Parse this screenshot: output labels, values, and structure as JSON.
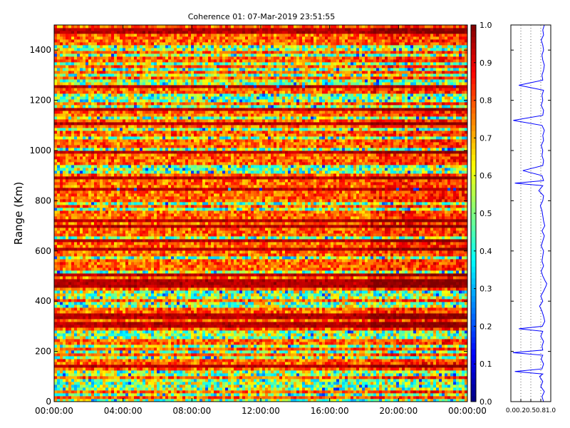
{
  "chart_data": [
    {
      "type": "heatmap",
      "title": "Coherence 01: 07-Mar-2019 23:51:55",
      "xlabel": "",
      "ylabel": "Range (Km)",
      "x_tick_labels": [
        "00:00:00",
        "04:00:00",
        "08:00:00",
        "12:00:00",
        "16:00:00",
        "20:00:00",
        "00:00:00"
      ],
      "x_range_hours": [
        0,
        24
      ],
      "y_ticks": [
        0,
        200,
        400,
        600,
        800,
        1000,
        1200,
        1400
      ],
      "ylim": [
        0,
        1500
      ],
      "colormap": "jet",
      "clim": [
        0,
        1
      ],
      "grid": false,
      "low_rows_km": [
        8,
        24,
        48,
        60,
        72,
        90,
        108,
        120,
        178,
        194,
        225,
        250,
        265,
        278,
        380,
        392,
        410,
        428,
        440,
        520,
        570,
        650,
        770,
        790,
        850,
        912,
        926,
        942,
        1010,
        1048,
        1080,
        1134,
        1176,
        1195,
        1210,
        1226,
        1250,
        1264,
        1278,
        1300,
        1328,
        1350,
        1378,
        1400,
        1420
      ],
      "high_rows_km": [
        140,
        300,
        315,
        330,
        350,
        460,
        470,
        480,
        500,
        610,
        640,
        700,
        720,
        850,
        895,
        990,
        1110,
        1160,
        1250,
        1470,
        1480
      ]
    },
    {
      "type": "bar",
      "title": "",
      "categories": [
        "0.0",
        "0.1",
        "0.2",
        "0.3",
        "0.4",
        "0.5",
        "0.6",
        "0.7",
        "0.8",
        "0.9",
        "1.0"
      ],
      "colormap": "jet",
      "ylim": [
        0,
        1
      ],
      "tick_labels": [
        "0.0",
        "0.1",
        "0.2",
        "0.3",
        "0.4",
        "0.5",
        "0.6",
        "0.7",
        "0.8",
        "0.9",
        "1.0"
      ]
    },
    {
      "type": "line",
      "title": "",
      "xlim": [
        0,
        1
      ],
      "ylim": [
        0,
        1500
      ],
      "x_tick_labels": [
        "0.0",
        "0.2",
        "0.5",
        "0.8",
        "1.0"
      ],
      "reference_lines_x": [
        0.25,
        0.5,
        0.75
      ],
      "line_color": "#0000ff",
      "series": [
        {
          "y": [
            0,
            20,
            40,
            60,
            80,
            100,
            110,
            120,
            130,
            150,
            170,
            185,
            195,
            205,
            220,
            240,
            260,
            280,
            290,
            300,
            320,
            340,
            360,
            380,
            400,
            420,
            440,
            460,
            470,
            480,
            500,
            520,
            540,
            560,
            580,
            600,
            620,
            640,
            660,
            680,
            700,
            720,
            740,
            760,
            780,
            800,
            820,
            840,
            860,
            870,
            880,
            900,
            920,
            940,
            960,
            980,
            1000,
            1020,
            1040,
            1060,
            1080,
            1100,
            1120,
            1140,
            1160,
            1180,
            1200,
            1220,
            1240,
            1260,
            1280,
            1300,
            1320,
            1340,
            1360,
            1380,
            1400,
            1420,
            1440,
            1460,
            1480,
            1500
          ],
          "x": [
            0.82,
            0.78,
            0.84,
            0.75,
            0.8,
            0.72,
            0.8,
            0.1,
            0.78,
            0.82,
            0.76,
            0.8,
            0.05,
            0.8,
            0.78,
            0.82,
            0.75,
            0.8,
            0.2,
            0.79,
            0.85,
            0.82,
            0.78,
            0.72,
            0.8,
            0.75,
            0.82,
            0.88,
            0.9,
            0.86,
            0.8,
            0.76,
            0.82,
            0.78,
            0.8,
            0.82,
            0.76,
            0.8,
            0.84,
            0.78,
            0.85,
            0.82,
            0.8,
            0.78,
            0.74,
            0.8,
            0.82,
            0.7,
            0.8,
            0.1,
            0.82,
            0.78,
            0.3,
            0.8,
            0.82,
            0.78,
            0.8,
            0.76,
            0.82,
            0.8,
            0.84,
            0.78,
            0.06,
            0.8,
            0.82,
            0.76,
            0.8,
            0.78,
            0.82,
            0.2,
            0.8,
            0.78,
            0.82,
            0.84,
            0.8,
            0.78,
            0.82,
            0.8,
            0.76,
            0.82,
            0.8,
            0.84
          ]
        }
      ]
    }
  ]
}
